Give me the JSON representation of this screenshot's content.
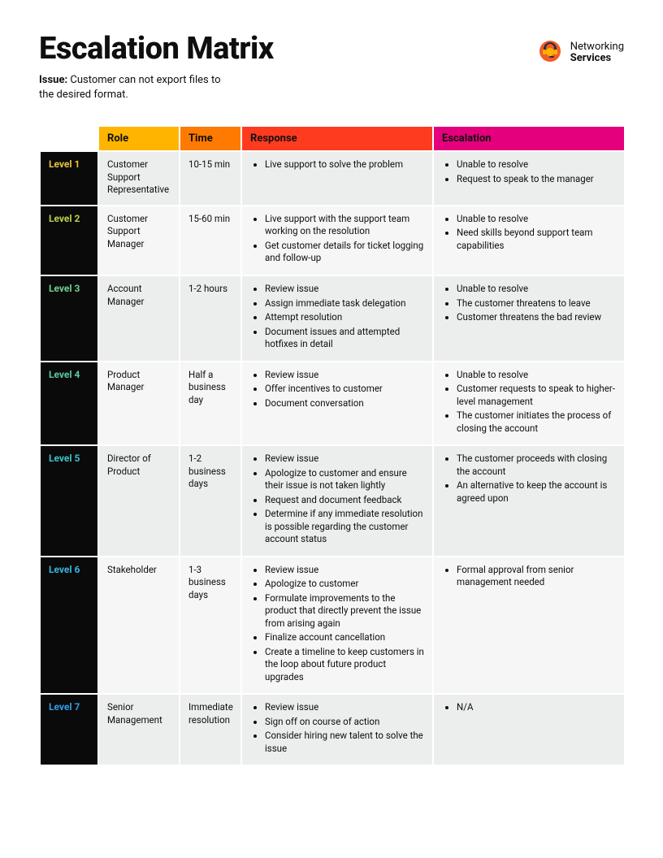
{
  "header": {
    "title": "Escalation Matrix",
    "issue_label": "Issue:",
    "issue_text": "Customer can not export files to the desired format.",
    "logo": {
      "line1": "Networking",
      "line2": "Services"
    }
  },
  "table": {
    "header_colors": {
      "role": "#ffb400",
      "time": "#ff7a00",
      "response": "#ff3b1f",
      "escalation": "#e4007c"
    },
    "columns": {
      "role": "Role",
      "time": "Time",
      "response": "Response",
      "escalation": "Escalation"
    },
    "level_bg": "#0a0a0a",
    "levels": [
      {
        "label": "Level 1",
        "label_color": "#e8c23a",
        "role": "Customer Support Representative",
        "time": "10-15 min",
        "response": [
          "Live support to solve the problem"
        ],
        "escalation": [
          "Unable to resolve",
          "Request to speak to the manager"
        ]
      },
      {
        "label": "Level 2",
        "label_color": "#b6d24a",
        "role": "Customer Support Manager",
        "time": "15-60 min",
        "response": [
          "Live support with the support team working on the resolution",
          "Get customer details for ticket logging and follow-up"
        ],
        "escalation": [
          "Unable to resolve",
          "Need skills beyond support team capabilities"
        ]
      },
      {
        "label": "Level 3",
        "label_color": "#6fd08c",
        "role": "Account Manager",
        "time": "1-2 hours",
        "response": [
          "Review issue",
          "Assign immediate task delegation",
          "Attempt resolution",
          "Document issues and attempted hotfixes in detail"
        ],
        "escalation": [
          "Unable to resolve",
          "The customer threatens to leave",
          "Customer threatens the bad review"
        ]
      },
      {
        "label": "Level 4",
        "label_color": "#57c9a7",
        "role": "Product Manager",
        "time": "Half a business day",
        "response": [
          "Review issue",
          "Offer incentives to customer",
          "Document conversation"
        ],
        "escalation": [
          "Unable to resolve",
          "Customer requests to speak to higher-level management",
          "The customer initiates the process of closing the account"
        ]
      },
      {
        "label": "Level 5",
        "label_color": "#3fc0c8",
        "role": "Director of Product",
        "time": "1-2 business days",
        "response": [
          "Review issue",
          "Apologize to customer and ensure their issue is not taken lightly",
          "Request and document feedback",
          "Determine if any immediate resolution is possible regarding the customer account status"
        ],
        "escalation": [
          "The customer proceeds with closing the account",
          "An alternative to keep the account is agreed upon"
        ]
      },
      {
        "label": "Level 6",
        "label_color": "#36b4e0",
        "role": "Stakeholder",
        "time": "1-3 business days",
        "response": [
          "Review issue",
          "Apologize to customer",
          "Formulate improvements to the product that directly prevent the issue from arising again",
          "Finalize account cancellation",
          "Create a timeline to keep customers in the loop about future product upgrades"
        ],
        "escalation": [
          "Formal approval from senior management needed"
        ]
      },
      {
        "label": "Level 7",
        "label_color": "#2e9fe8",
        "role": "Senior Management",
        "time": "Immediate resolution",
        "response": [
          "Review issue",
          "Sign off on course of action",
          "Consider hiring new talent to solve the issue"
        ],
        "escalation": [
          "N/A"
        ]
      }
    ]
  }
}
